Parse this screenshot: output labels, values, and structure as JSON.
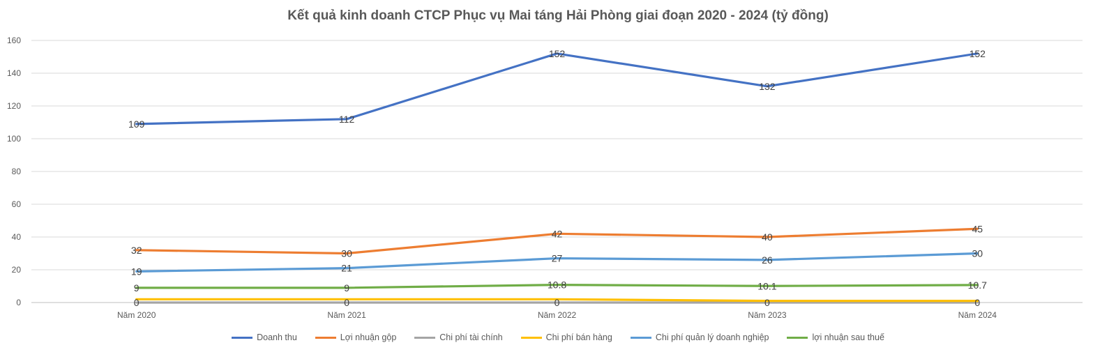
{
  "chart_data": {
    "type": "line",
    "title": "Kết quả kinh doanh CTCP Phục vụ Mai táng Hải Phòng  giai đoạn 2020 - 2024 (tỷ đồng)",
    "categories": [
      "Năm 2020",
      "Năm 2021",
      "Năm 2022",
      "Năm 2023",
      "Năm 2024"
    ],
    "ylim": [
      0,
      160
    ],
    "yticks": [
      0,
      20,
      40,
      60,
      80,
      100,
      120,
      140,
      160
    ],
    "grid": true,
    "legend_position": "bottom",
    "series": [
      {
        "name": "Doanh thu",
        "color": "#4472C4",
        "values": [
          109,
          112,
          152,
          132,
          152
        ],
        "labels": [
          "109",
          "112",
          "152",
          "132",
          "152"
        ]
      },
      {
        "name": "Lợi nhuận gộp",
        "color": "#ED7D31",
        "values": [
          32,
          30,
          42,
          40,
          45
        ],
        "labels": [
          "32",
          "30",
          "42",
          "40",
          "45"
        ]
      },
      {
        "name": "Chi phí tài chính",
        "color": "#A5A5A5",
        "values": [
          0,
          0,
          0,
          0,
          0
        ],
        "labels": [
          "0",
          "0",
          "0",
          "0",
          "0"
        ]
      },
      {
        "name": "Chi phí bán hàng",
        "color": "#FFC000",
        "values": [
          2,
          2,
          2,
          1,
          1
        ],
        "labels": []
      },
      {
        "name": "Chi phí quản lý doanh nghiệp",
        "color": "#5B9BD5",
        "values": [
          19,
          21,
          27,
          26,
          30
        ],
        "labels": [
          "19",
          "21",
          "27",
          "26",
          "30"
        ]
      },
      {
        "name": "lợi nhuận sau thuế",
        "color": "#70AD47",
        "values": [
          9,
          9,
          10.8,
          10.1,
          10.7
        ],
        "labels": [
          "9",
          "9",
          "10.8",
          "10.1",
          "10.7"
        ]
      }
    ]
  }
}
